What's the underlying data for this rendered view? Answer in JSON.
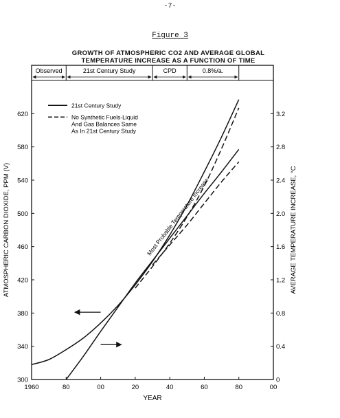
{
  "page": {
    "number": "-7-",
    "figure_label": "Figure 3",
    "title_line1": "GROWTH OF ATMOSPHERIC CO2 AND AVERAGE GLOBAL",
    "title_line2": "TEMPERATURE INCREASE AS A FUNCTION OF TIME"
  },
  "chart_data": {
    "type": "line",
    "title": "GROWTH OF ATMOSPHERIC CO2 AND AVERAGE GLOBAL TEMPERATURE INCREASE AS A FUNCTION OF TIME",
    "xlabel": "YEAR",
    "ylabel": "ATMOSPHERIC CARBON DIOXIDE, PPM (V)",
    "y2label": "AVERAGE TEMPERATURE INCREASE, °C",
    "xlim": [
      1960,
      2100
    ],
    "ylim": [
      300,
      660
    ],
    "y2lim": [
      0,
      3.6
    ],
    "x_ticks": [
      1960,
      1980,
      2000,
      2020,
      2040,
      2060,
      2080,
      2100
    ],
    "x_tick_labels": [
      "1960",
      "80",
      "00",
      "20",
      "40",
      "60",
      "80",
      "00"
    ],
    "y_ticks": [
      300,
      340,
      380,
      420,
      460,
      500,
      540,
      580,
      620
    ],
    "y_tick_labels": [
      "300",
      "340",
      "380",
      "420",
      "460",
      "500",
      "540",
      "580",
      "620"
    ],
    "y2_ticks": [
      0,
      0.4,
      0.8,
      1.2,
      1.6,
      2.0,
      2.4,
      2.8,
      3.2
    ],
    "y2_tick_labels": [
      "0",
      "0.4",
      "0.8",
      "1.2",
      "1.6",
      "2.0",
      "2.4",
      "2.8",
      "3.2"
    ],
    "periods": [
      {
        "label": "Observed",
        "from": 1960,
        "to": 1980
      },
      {
        "label": "21st Century Study",
        "from": 1980,
        "to": 2030
      },
      {
        "label": "CPD",
        "from": 2030,
        "to": 2050
      },
      {
        "label": "0.8%/a.",
        "from": 2050,
        "to": 2080
      }
    ],
    "legend": {
      "placement": "top-left",
      "entries": [
        {
          "style": "solid",
          "label": "21st Century Study"
        },
        {
          "style": "dashed",
          "label_lines": [
            "No Synthetic Fuels-Liquid",
            "And Gas Balances Same",
            "As In 21st Century Study"
          ]
        }
      ]
    },
    "annotation": "Most Probable Temperature Increase",
    "series": [
      {
        "role": "co2",
        "style": "solid",
        "axis": "left",
        "x": [
          1960,
          1970,
          1980,
          1990,
          2000,
          2010,
          2020,
          2030,
          2040,
          2050,
          2060,
          2070,
          2080
        ],
        "values": [
          318,
          324,
          336,
          350,
          368,
          389,
          414,
          442,
          474,
          510,
          550,
          592,
          637
        ]
      },
      {
        "role": "co2",
        "style": "dashed",
        "axis": "left",
        "x": [
          2020,
          2030,
          2040,
          2050,
          2060,
          2070,
          2080
        ],
        "values": [
          410,
          436,
          464,
          496,
          533,
          578,
          627
        ]
      },
      {
        "role": "temperature",
        "style": "solid",
        "axis": "right",
        "x": [
          1980,
          1990,
          2000,
          2010,
          2020,
          2030,
          2040,
          2050,
          2060,
          2070,
          2080
        ],
        "values": [
          0.0,
          0.28,
          0.58,
          0.87,
          1.16,
          1.43,
          1.7,
          1.97,
          2.24,
          2.5,
          2.77
        ]
      },
      {
        "role": "temperature",
        "style": "dashed",
        "axis": "right",
        "x": [
          2030,
          2040,
          2050,
          2060,
          2070,
          2080
        ],
        "values": [
          1.38,
          1.62,
          1.86,
          2.12,
          2.38,
          2.62
        ]
      }
    ],
    "arrows": [
      {
        "direction": "left",
        "x": [
          1985,
          2000
        ],
        "y": 381
      },
      {
        "direction": "right",
        "x": [
          2000,
          2012
        ],
        "y": 342
      }
    ]
  }
}
